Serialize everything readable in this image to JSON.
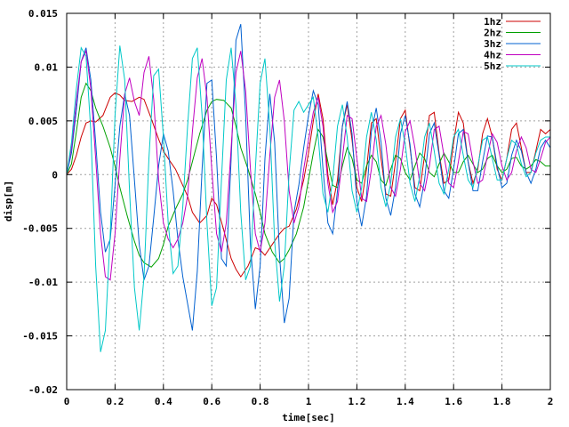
{
  "chart_data": {
    "type": "line",
    "title": "",
    "xlabel": "time[sec]",
    "ylabel": "disp[m]",
    "xlim": [
      0,
      2
    ],
    "ylim": [
      -0.02,
      0.015
    ],
    "grid": true,
    "legend_position": "top-right",
    "x_ticks": [
      "0",
      "0.2",
      "0.4",
      "0.6",
      "0.8",
      "1",
      "1.2",
      "1.4",
      "1.6",
      "1.8",
      "2"
    ],
    "y_ticks": [
      "0.015",
      "0.01",
      "0.005",
      "0",
      "-0.005",
      "-0.01",
      "-0.015",
      "-0.02"
    ],
    "series": [
      {
        "name": "1hz",
        "color": "#cc0000",
        "x": [
          0,
          0.02,
          0.04,
          0.06,
          0.08,
          0.1,
          0.12,
          0.15,
          0.18,
          0.2,
          0.22,
          0.24,
          0.27,
          0.3,
          0.32,
          0.35,
          0.38,
          0.4,
          0.42,
          0.45,
          0.48,
          0.5,
          0.52,
          0.55,
          0.58,
          0.6,
          0.62,
          0.65,
          0.68,
          0.7,
          0.72,
          0.75,
          0.78,
          0.8,
          0.82,
          0.85,
          0.88,
          0.9,
          0.92,
          0.95,
          0.98,
          1,
          1.02,
          1.04,
          1.06,
          1.08,
          1.1,
          1.12,
          1.14,
          1.16,
          1.18,
          1.2,
          1.22,
          1.24,
          1.26,
          1.28,
          1.3,
          1.32,
          1.34,
          1.36,
          1.38,
          1.4,
          1.42,
          1.44,
          1.46,
          1.48,
          1.5,
          1.52,
          1.54,
          1.56,
          1.58,
          1.6,
          1.62,
          1.64,
          1.66,
          1.68,
          1.7,
          1.72,
          1.74,
          1.76,
          1.78,
          1.8,
          1.82,
          1.84,
          1.86,
          1.88,
          1.9,
          1.92,
          1.94,
          1.96,
          1.98,
          2
        ],
        "y": [
          0,
          0.0005,
          0.0018,
          0.0035,
          0.0048,
          0.005,
          0.0049,
          0.0055,
          0.0072,
          0.0076,
          0.0074,
          0.0069,
          0.0068,
          0.0072,
          0.007,
          0.0052,
          0.0033,
          0.0022,
          0.0015,
          0.0005,
          -0.001,
          -0.002,
          -0.0035,
          -0.0045,
          -0.0038,
          -0.0022,
          -0.0028,
          -0.0052,
          -0.0078,
          -0.0088,
          -0.0095,
          -0.0085,
          -0.0068,
          -0.007,
          -0.0075,
          -0.0065,
          -0.0055,
          -0.005,
          -0.0048,
          -0.0032,
          -0.0005,
          0.002,
          0.005,
          0.0075,
          0.0052,
          0.0,
          -0.0028,
          -0.0005,
          0.0045,
          0.0065,
          0.0032,
          -0.0012,
          -0.0025,
          0.0005,
          0.0048,
          0.0052,
          0.0015,
          -0.0018,
          -0.002,
          0.0012,
          0.0052,
          0.006,
          0.0025,
          -0.0012,
          -0.0015,
          0.0018,
          0.0055,
          0.0058,
          0.002,
          -0.0008,
          -0.0005,
          0.003,
          0.0058,
          0.0048,
          0.0012,
          -0.0008,
          0.0005,
          0.0038,
          0.0052,
          0.0035,
          0.0005,
          -0.0005,
          0.0015,
          0.0042,
          0.0048,
          0.0025,
          0.0002,
          0.0002,
          0.0022,
          0.0042,
          0.0038,
          0.0042
        ]
      },
      {
        "name": "2hz",
        "color": "#00a000",
        "x": [
          0,
          0.02,
          0.04,
          0.06,
          0.08,
          0.1,
          0.12,
          0.15,
          0.18,
          0.2,
          0.22,
          0.25,
          0.28,
          0.3,
          0.32,
          0.35,
          0.38,
          0.4,
          0.42,
          0.45,
          0.48,
          0.5,
          0.52,
          0.55,
          0.58,
          0.6,
          0.62,
          0.65,
          0.68,
          0.7,
          0.72,
          0.75,
          0.78,
          0.8,
          0.82,
          0.85,
          0.88,
          0.9,
          0.92,
          0.95,
          0.98,
          1,
          1.02,
          1.04,
          1.06,
          1.08,
          1.1,
          1.12,
          1.14,
          1.16,
          1.18,
          1.2,
          1.22,
          1.24,
          1.26,
          1.28,
          1.3,
          1.32,
          1.34,
          1.36,
          1.38,
          1.4,
          1.42,
          1.44,
          1.46,
          1.48,
          1.5,
          1.52,
          1.54,
          1.56,
          1.58,
          1.6,
          1.62,
          1.64,
          1.66,
          1.68,
          1.7,
          1.72,
          1.74,
          1.76,
          1.78,
          1.8,
          1.82,
          1.84,
          1.86,
          1.88,
          1.9,
          1.92,
          1.94,
          1.96,
          1.98,
          2
        ],
        "y": [
          0,
          0.001,
          0.004,
          0.0072,
          0.0085,
          0.0078,
          0.0062,
          0.0045,
          0.0025,
          0.0008,
          -0.0012,
          -0.0038,
          -0.0062,
          -0.0075,
          -0.0082,
          -0.0086,
          -0.0078,
          -0.0065,
          -0.0048,
          -0.0032,
          -0.0018,
          -0.0005,
          0.0012,
          0.0038,
          0.006,
          0.0068,
          0.007,
          0.0069,
          0.0062,
          0.0045,
          0.0025,
          0.0005,
          -0.0018,
          -0.0035,
          -0.0055,
          -0.0072,
          -0.0082,
          -0.0078,
          -0.007,
          -0.0055,
          -0.003,
          -0.0005,
          0.002,
          0.0042,
          0.0035,
          0.0012,
          -0.001,
          -0.0012,
          0.0008,
          0.0025,
          0.0015,
          -0.0005,
          -0.0008,
          0.0008,
          0.0018,
          0.0012,
          -0.0005,
          -0.001,
          0.0005,
          0.0018,
          0.0015,
          0.0002,
          -0.0005,
          0.0008,
          0.002,
          0.0015,
          0.0002,
          -0.0002,
          0.001,
          0.002,
          0.0012,
          0.0002,
          0.0002,
          0.0012,
          0.0018,
          0.001,
          0.0002,
          0.0005,
          0.0015,
          0.0018,
          0.0008,
          0.0002,
          0.0005,
          0.0015,
          0.0016,
          0.0008,
          0.0005,
          0.0008,
          0.0014,
          0.0012,
          0.0008,
          0.0008
        ]
      },
      {
        "name": "3hz",
        "color": "#0060d0",
        "x": [
          0,
          0.02,
          0.04,
          0.06,
          0.08,
          0.1,
          0.12,
          0.14,
          0.16,
          0.18,
          0.2,
          0.22,
          0.24,
          0.26,
          0.28,
          0.3,
          0.32,
          0.34,
          0.36,
          0.38,
          0.4,
          0.42,
          0.44,
          0.46,
          0.48,
          0.5,
          0.52,
          0.54,
          0.56,
          0.58,
          0.6,
          0.62,
          0.64,
          0.66,
          0.68,
          0.7,
          0.72,
          0.74,
          0.76,
          0.78,
          0.8,
          0.82,
          0.84,
          0.86,
          0.88,
          0.9,
          0.92,
          0.94,
          0.96,
          0.98,
          1,
          1.02,
          1.04,
          1.06,
          1.08,
          1.1,
          1.12,
          1.14,
          1.16,
          1.18,
          1.2,
          1.22,
          1.24,
          1.26,
          1.28,
          1.3,
          1.32,
          1.34,
          1.36,
          1.38,
          1.4,
          1.42,
          1.44,
          1.46,
          1.48,
          1.5,
          1.52,
          1.54,
          1.56,
          1.58,
          1.6,
          1.62,
          1.64,
          1.66,
          1.68,
          1.7,
          1.72,
          1.74,
          1.76,
          1.78,
          1.8,
          1.82,
          1.84,
          1.86,
          1.88,
          1.9,
          1.92,
          1.94,
          1.96,
          1.98,
          2
        ],
        "y": [
          0,
          0.002,
          0.006,
          0.0105,
          0.0118,
          0.0088,
          0.003,
          -0.0035,
          -0.0072,
          -0.006,
          -0.001,
          0.0045,
          0.0075,
          0.0055,
          -0.0005,
          -0.0065,
          -0.0098,
          -0.0085,
          -0.004,
          0.0008,
          0.0038,
          0.0022,
          -0.0015,
          -0.006,
          -0.0095,
          -0.012,
          -0.0145,
          -0.009,
          0.0005,
          0.0085,
          0.0088,
          0.0015,
          -0.0078,
          -0.0085,
          0.0015,
          0.0125,
          0.014,
          0.0055,
          -0.0065,
          -0.0125,
          -0.0085,
          0.0015,
          0.0075,
          0.003,
          -0.0075,
          -0.0138,
          -0.0115,
          -0.0035,
          -0.001,
          0.0025,
          0.0055,
          0.0078,
          0.0065,
          0.0005,
          -0.0045,
          -0.0055,
          -0.0015,
          0.0045,
          0.0068,
          0.0038,
          -0.0025,
          -0.0048,
          -0.002,
          0.004,
          0.0062,
          0.003,
          -0.0022,
          -0.0038,
          -0.0012,
          0.0038,
          0.0055,
          0.0028,
          -0.0018,
          -0.003,
          -0.0005,
          0.0038,
          0.0048,
          0.0018,
          -0.0015,
          -0.0022,
          0.0005,
          0.0038,
          0.0042,
          0.0012,
          -0.0015,
          -0.0015,
          0.0012,
          0.0036,
          0.0035,
          0.0008,
          -0.0012,
          -0.0008,
          0.0018,
          0.0032,
          0.0022,
          0.0002,
          -0.0008,
          0.0005,
          0.0025,
          0.0032,
          0.0025
        ]
      },
      {
        "name": "4hz",
        "color": "#c000c0",
        "x": [
          0,
          0.02,
          0.04,
          0.06,
          0.08,
          0.1,
          0.12,
          0.14,
          0.16,
          0.18,
          0.2,
          0.22,
          0.24,
          0.26,
          0.28,
          0.3,
          0.32,
          0.34,
          0.36,
          0.38,
          0.4,
          0.42,
          0.44,
          0.46,
          0.48,
          0.5,
          0.52,
          0.54,
          0.56,
          0.58,
          0.6,
          0.62,
          0.64,
          0.66,
          0.68,
          0.7,
          0.72,
          0.74,
          0.76,
          0.78,
          0.8,
          0.82,
          0.84,
          0.86,
          0.88,
          0.9,
          0.92,
          0.94,
          0.96,
          0.98,
          1,
          1.02,
          1.04,
          1.06,
          1.08,
          1.1,
          1.12,
          1.14,
          1.16,
          1.18,
          1.2,
          1.22,
          1.24,
          1.26,
          1.28,
          1.3,
          1.32,
          1.34,
          1.36,
          1.38,
          1.4,
          1.42,
          1.44,
          1.46,
          1.48,
          1.5,
          1.52,
          1.54,
          1.56,
          1.58,
          1.6,
          1.62,
          1.64,
          1.66,
          1.68,
          1.7,
          1.72,
          1.74,
          1.76,
          1.78,
          1.8,
          1.82,
          1.84,
          1.86,
          1.88,
          1.9,
          1.92,
          1.94,
          1.96,
          1.98,
          2
        ],
        "y": [
          0,
          0.0025,
          0.0068,
          0.0105,
          0.0115,
          0.008,
          0.0015,
          -0.0055,
          -0.0095,
          -0.0098,
          -0.0055,
          0.0015,
          0.0075,
          0.009,
          0.0068,
          0.0055,
          0.0095,
          0.011,
          0.007,
          -0.0005,
          -0.0045,
          -0.006,
          -0.0068,
          -0.006,
          -0.0045,
          -0.002,
          0.004,
          0.009,
          0.0108,
          0.0072,
          0.0005,
          -0.0055,
          -0.0072,
          -0.0045,
          0.0025,
          0.0095,
          0.0115,
          0.0078,
          0.0005,
          -0.0055,
          -0.0072,
          -0.0045,
          0.0018,
          0.0072,
          0.0088,
          0.005,
          -0.0015,
          -0.0045,
          -0.003,
          0.0005,
          0.0032,
          0.0058,
          0.0072,
          0.0045,
          -0.0008,
          -0.0035,
          -0.0025,
          0.0015,
          0.0055,
          0.0052,
          0.0015,
          -0.0022,
          -0.0025,
          0.0005,
          0.0045,
          0.0055,
          0.0028,
          -0.0012,
          -0.002,
          0.0005,
          0.004,
          0.005,
          0.0025,
          -0.0008,
          -0.0015,
          0.0008,
          0.0042,
          0.0045,
          0.0018,
          -0.0008,
          -0.0012,
          0.0012,
          0.004,
          0.0038,
          0.0012,
          -0.0008,
          -0.0005,
          0.0018,
          0.0038,
          0.003,
          0.0008,
          -0.0005,
          0.0002,
          0.0022,
          0.0035,
          0.0025,
          0.0005,
          0.0002,
          0.0015,
          0.003,
          0.0035
        ]
      },
      {
        "name": "5hz",
        "color": "#00c8c8",
        "x": [
          0,
          0.02,
          0.04,
          0.06,
          0.08,
          0.1,
          0.12,
          0.14,
          0.16,
          0.18,
          0.2,
          0.22,
          0.24,
          0.26,
          0.28,
          0.3,
          0.32,
          0.34,
          0.36,
          0.38,
          0.4,
          0.42,
          0.44,
          0.46,
          0.48,
          0.5,
          0.52,
          0.54,
          0.56,
          0.58,
          0.6,
          0.62,
          0.64,
          0.66,
          0.68,
          0.7,
          0.72,
          0.74,
          0.76,
          0.78,
          0.8,
          0.82,
          0.84,
          0.86,
          0.88,
          0.9,
          0.92,
          0.94,
          0.96,
          0.98,
          1,
          1.02,
          1.04,
          1.06,
          1.08,
          1.1,
          1.12,
          1.14,
          1.16,
          1.18,
          1.2,
          1.22,
          1.24,
          1.26,
          1.28,
          1.3,
          1.32,
          1.34,
          1.36,
          1.38,
          1.4,
          1.42,
          1.44,
          1.46,
          1.48,
          1.5,
          1.52,
          1.54,
          1.56,
          1.58,
          1.6,
          1.62,
          1.64,
          1.66,
          1.68,
          1.7,
          1.72,
          1.74,
          1.76,
          1.78,
          1.8,
          1.82,
          1.84,
          1.86,
          1.88,
          1.9,
          1.92,
          1.94,
          1.96,
          1.98,
          2
        ],
        "y": [
          0,
          0.003,
          0.008,
          0.0118,
          0.011,
          0.004,
          -0.0085,
          -0.0165,
          -0.0145,
          -0.0055,
          0.0055,
          0.012,
          0.0088,
          -0.0015,
          -0.0105,
          -0.0145,
          -0.0095,
          0.0015,
          0.0092,
          0.0098,
          0.0035,
          -0.0045,
          -0.0092,
          -0.0085,
          -0.003,
          0.0045,
          0.0108,
          0.0118,
          0.0055,
          -0.0045,
          -0.0122,
          -0.0105,
          -0.0005,
          0.0088,
          0.0118,
          0.0065,
          -0.0035,
          -0.0098,
          -0.0085,
          0.0005,
          0.0085,
          0.0108,
          0.0045,
          -0.0062,
          -0.0118,
          -0.0085,
          0.0002,
          0.006,
          0.0068,
          0.0058,
          0.0065,
          0.0072,
          0.0035,
          -0.0018,
          -0.0035,
          -0.0005,
          0.0045,
          0.0065,
          0.0035,
          -0.0015,
          -0.0035,
          -0.0012,
          0.0035,
          0.0058,
          0.0032,
          -0.0012,
          -0.003,
          -0.0008,
          0.0035,
          0.0052,
          0.0028,
          -0.0008,
          -0.0025,
          -0.0002,
          0.0035,
          0.0048,
          0.0022,
          -0.0008,
          -0.0018,
          0.0005,
          0.0035,
          0.0042,
          0.0018,
          -0.0005,
          -0.0012,
          0.0008,
          0.0032,
          0.0035,
          0.0015,
          -0.0005,
          -0.0005,
          0.0015,
          0.0032,
          0.0028,
          0.001,
          -0.0002,
          0.0002,
          0.002,
          0.0032,
          0.0035,
          0.0035
        ]
      }
    ]
  }
}
